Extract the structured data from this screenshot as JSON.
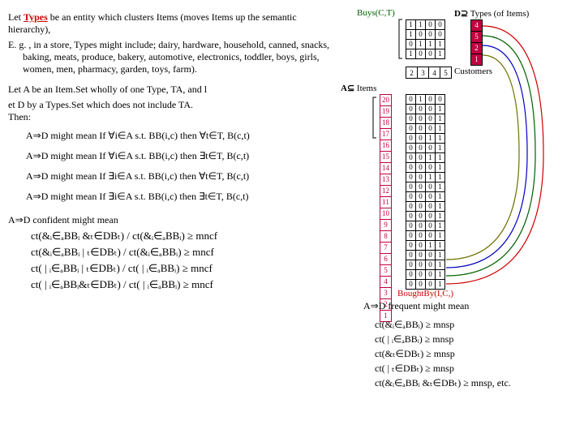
{
  "intro": {
    "line1_prefix": "Let ",
    "types_word": "Types",
    "line1_rest": " be an entity which clusters Items (moves Items up the semantic hierarchy),",
    "eg": "E. g. , in a store, Types might include; dairy, hardware, household, canned, snacks, baking, meats, produce, bakery, automotive, electronics, toddler, boys, girls, women, men, pharmacy, garden, toys, farm).",
    "let_a": "Let A be an Item.Set wholly of one Type, TA, and l",
    "let_a2": "et D by a Types.Set which does not include TA.",
    "then": "Then:"
  },
  "implications": {
    "r1": "A⇒D might mean If ∀i∈A s.t. BB(i,c) then ∀t∈T, B(c,t)",
    "r2": "A⇒D might mean If ∀i∈A s.t. BB(i,c) then ∃t∈T, B(c,t)",
    "r3": "A⇒D might mean If ∃i∈A s.t. BB(i,c) then ∀t∈T, B(c,t)",
    "r4": "A⇒D might mean If ∃i∈A s.t. BB(i,c) then ∃t∈T, B(c,t)"
  },
  "confident": {
    "header": "A⇒D confident might mean",
    "c1": "ct(&ᵢ∈ₐBBᵢ &ₜ∈DBₜ) / ct(&ᵢ∈ₐBBᵢ) ≥ mncf",
    "c2": "ct(&ᵢ∈ₐBBᵢ | ₜ∈DBₜ) / ct(&ᵢ∈ₐBBᵢ) ≥ mncf",
    "c3": "ct( | ᵢ∈ₐBBᵢ | ₜ∈DBₜ) / ct( | ᵢ∈ₐBBᵢ) ≥ mncf",
    "c4": "ct( | ᵢ∈ₐBBᵢ&ₜ∈DBₜ) / ct( | ᵢ∈ₐBBᵢ) ≥ mncf"
  },
  "frequent": {
    "header": "A⇒D frequent might mean",
    "f1": "ct(&ᵢ∈ₐBBᵢ) ≥ mnsp",
    "f2": "ct( | ᵢ∈ₐBBᵢ) ≥ mnsp",
    "f3": "ct(&ₜ∈DBₜ) ≥ mnsp",
    "f4": "ct( | ₜ∈DBₜ) ≥ mnsp",
    "f5": "ct(&ᵢ∈ₐBBᵢ &ₜ∈DBₜ) ≥ mnsp, etc."
  },
  "diagram": {
    "buys_label": "Buys(C,T)",
    "d_supset": "D⊇",
    "types_of_items": "Types (of Items)",
    "a_subset": "A⊆",
    "items_label": "Items",
    "customers_label": "Customers",
    "bought_label": "BoughtBy(I,C,)",
    "top_matrix": [
      [
        "1",
        "1",
        "0",
        "0"
      ],
      [
        "1",
        "0",
        "0",
        "0"
      ],
      [
        "0",
        "1",
        "1",
        "1"
      ],
      [
        "1",
        "0",
        "0",
        "1"
      ]
    ],
    "type_ids": [
      "4",
      "5",
      "2",
      "1"
    ],
    "cust_ids": [
      "2",
      "3",
      "4",
      "5"
    ],
    "item_ids": [
      "20",
      "19",
      "18",
      "17",
      "16",
      "15",
      "14",
      "13",
      "12",
      "11",
      "10",
      "9",
      "8",
      "7",
      "6",
      "5",
      "4",
      "3",
      "2",
      "1"
    ],
    "bought_matrix": [
      [
        "0",
        "1",
        "0",
        "0"
      ],
      [
        "0",
        "0",
        "0",
        "1"
      ],
      [
        "0",
        "0",
        "0",
        "1"
      ],
      [
        "0",
        "0",
        "0",
        "1"
      ],
      [
        "0",
        "0",
        "1",
        "1"
      ],
      [
        "0",
        "0",
        "0",
        "1"
      ],
      [
        "0",
        "0",
        "1",
        "1"
      ],
      [
        "0",
        "0",
        "0",
        "1"
      ],
      [
        "0",
        "0",
        "1",
        "1"
      ],
      [
        "0",
        "0",
        "0",
        "1"
      ],
      [
        "0",
        "0",
        "0",
        "1"
      ],
      [
        "0",
        "0",
        "0",
        "1"
      ],
      [
        "0",
        "0",
        "0",
        "1"
      ],
      [
        "0",
        "0",
        "0",
        "1"
      ],
      [
        "0",
        "0",
        "0",
        "1"
      ],
      [
        "0",
        "0",
        "1",
        "1"
      ],
      [
        "0",
        "0",
        "0",
        "1"
      ],
      [
        "0",
        "0",
        "0",
        "1"
      ],
      [
        "0",
        "0",
        "0",
        "1"
      ],
      [
        "0",
        "0",
        "0",
        "1"
      ]
    ],
    "wire_colors": [
      "#d00000",
      "#006000",
      "#0000c0",
      "#707000"
    ]
  }
}
